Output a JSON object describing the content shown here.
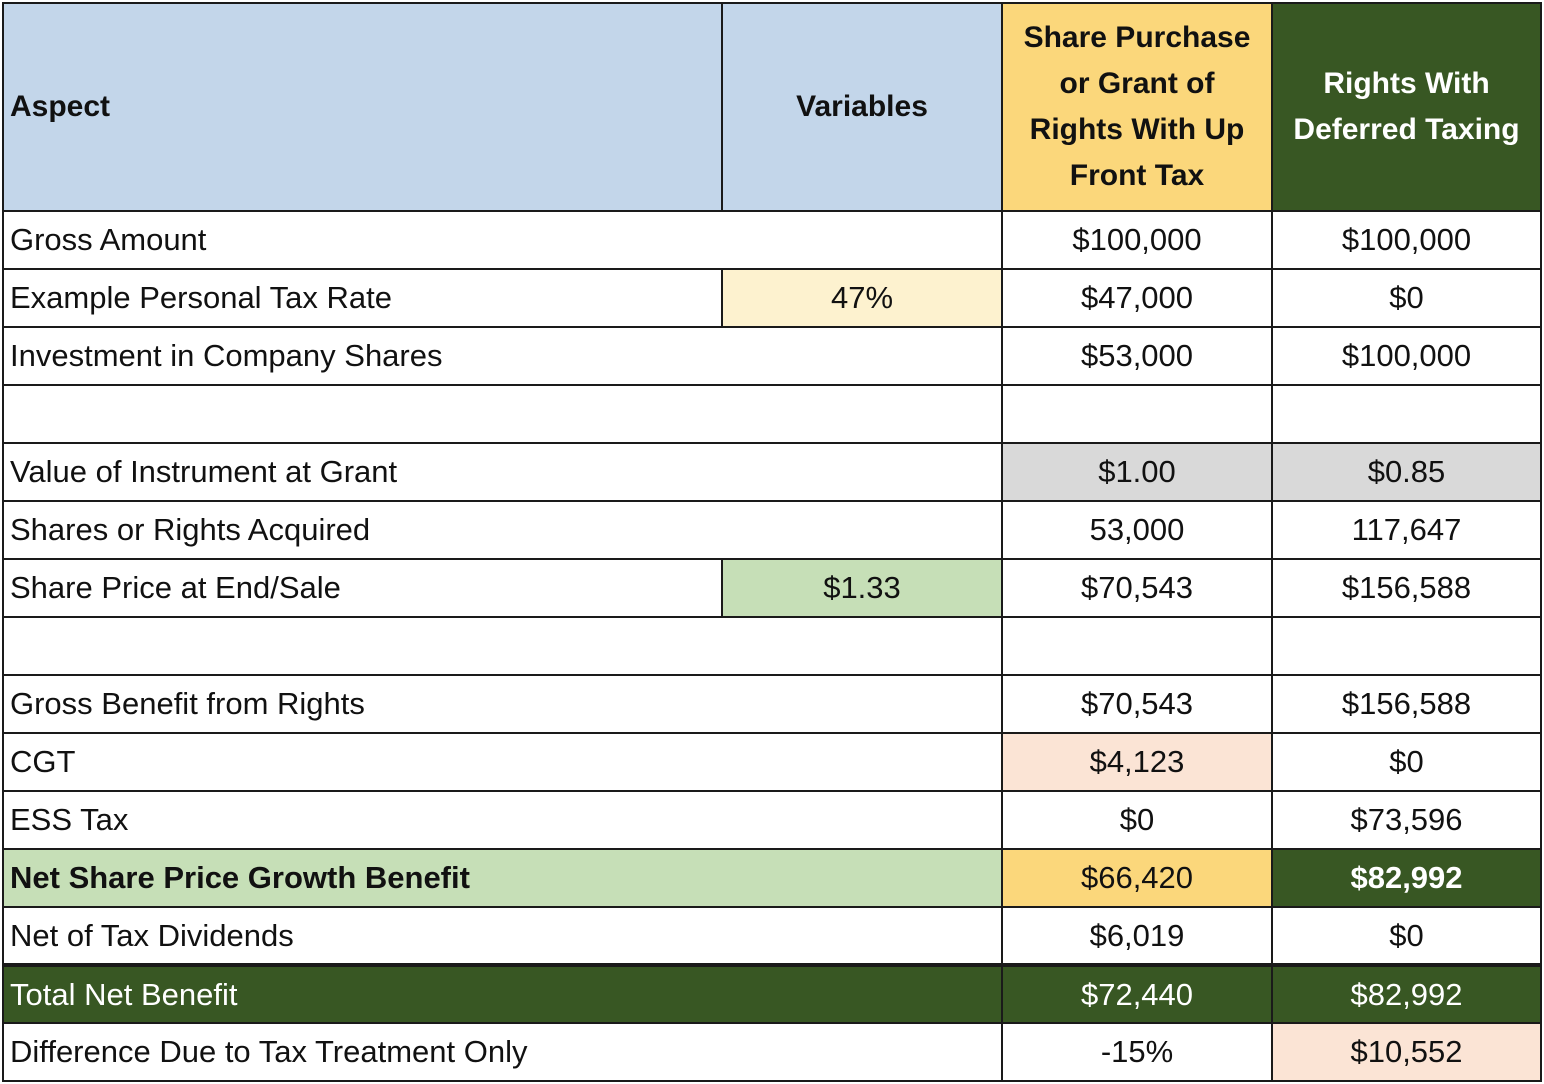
{
  "headers": {
    "aspect": "Aspect",
    "variables": "Variables",
    "upfront": "Share Purchase or Grant of Rights With Up Front Tax",
    "deferred": "Rights With Deferred Taxing"
  },
  "rows": {
    "gross_amount": {
      "label": "Gross Amount",
      "upfront": "$100,000",
      "deferred": "$100,000"
    },
    "tax_rate": {
      "label": "Example Personal Tax Rate",
      "variable": "47%",
      "upfront": "$47,000",
      "deferred": "$0"
    },
    "investment": {
      "label": "Investment in Company Shares",
      "upfront": "$53,000",
      "deferred": "$100,000"
    },
    "value_at_grant": {
      "label": "Value of Instrument at Grant",
      "upfront": "$1.00",
      "deferred": "$0.85"
    },
    "acquired": {
      "label": "Shares or Rights Acquired",
      "upfront": "53,000",
      "deferred": "117,647"
    },
    "share_price_end": {
      "label": "Share Price at End/Sale",
      "variable": "$1.33",
      "upfront": "$70,543",
      "deferred": "$156,588"
    },
    "gross_benefit": {
      "label": "Gross Benefit from Rights",
      "upfront": "$70,543",
      "deferred": "$156,588"
    },
    "cgt": {
      "label": "CGT",
      "upfront": "$4,123",
      "deferred": "$0"
    },
    "ess_tax": {
      "label": "ESS Tax",
      "upfront": "$0",
      "deferred": "$73,596"
    },
    "net_growth": {
      "label": "Net Share Price Growth Benefit",
      "upfront": "$66,420",
      "deferred": "$82,992"
    },
    "net_dividends": {
      "label": "Net of Tax Dividends",
      "upfront": "$6,019",
      "deferred": "$0"
    },
    "total_net": {
      "label": "Total Net Benefit",
      "upfront": "$72,440",
      "deferred": "$82,992"
    },
    "difference": {
      "label": "Difference Due to Tax Treatment Only",
      "upfront": "-15%",
      "deferred": "$10,552"
    }
  },
  "colors": {
    "header_blue": "#c3d6ea",
    "header_yellow": "#fbd77b",
    "dark_green": "#385723",
    "light_green": "#c6dfb7",
    "light_yellow": "#fdf2cf",
    "grey": "#d9d9d9",
    "peach": "#fbe4d5"
  }
}
